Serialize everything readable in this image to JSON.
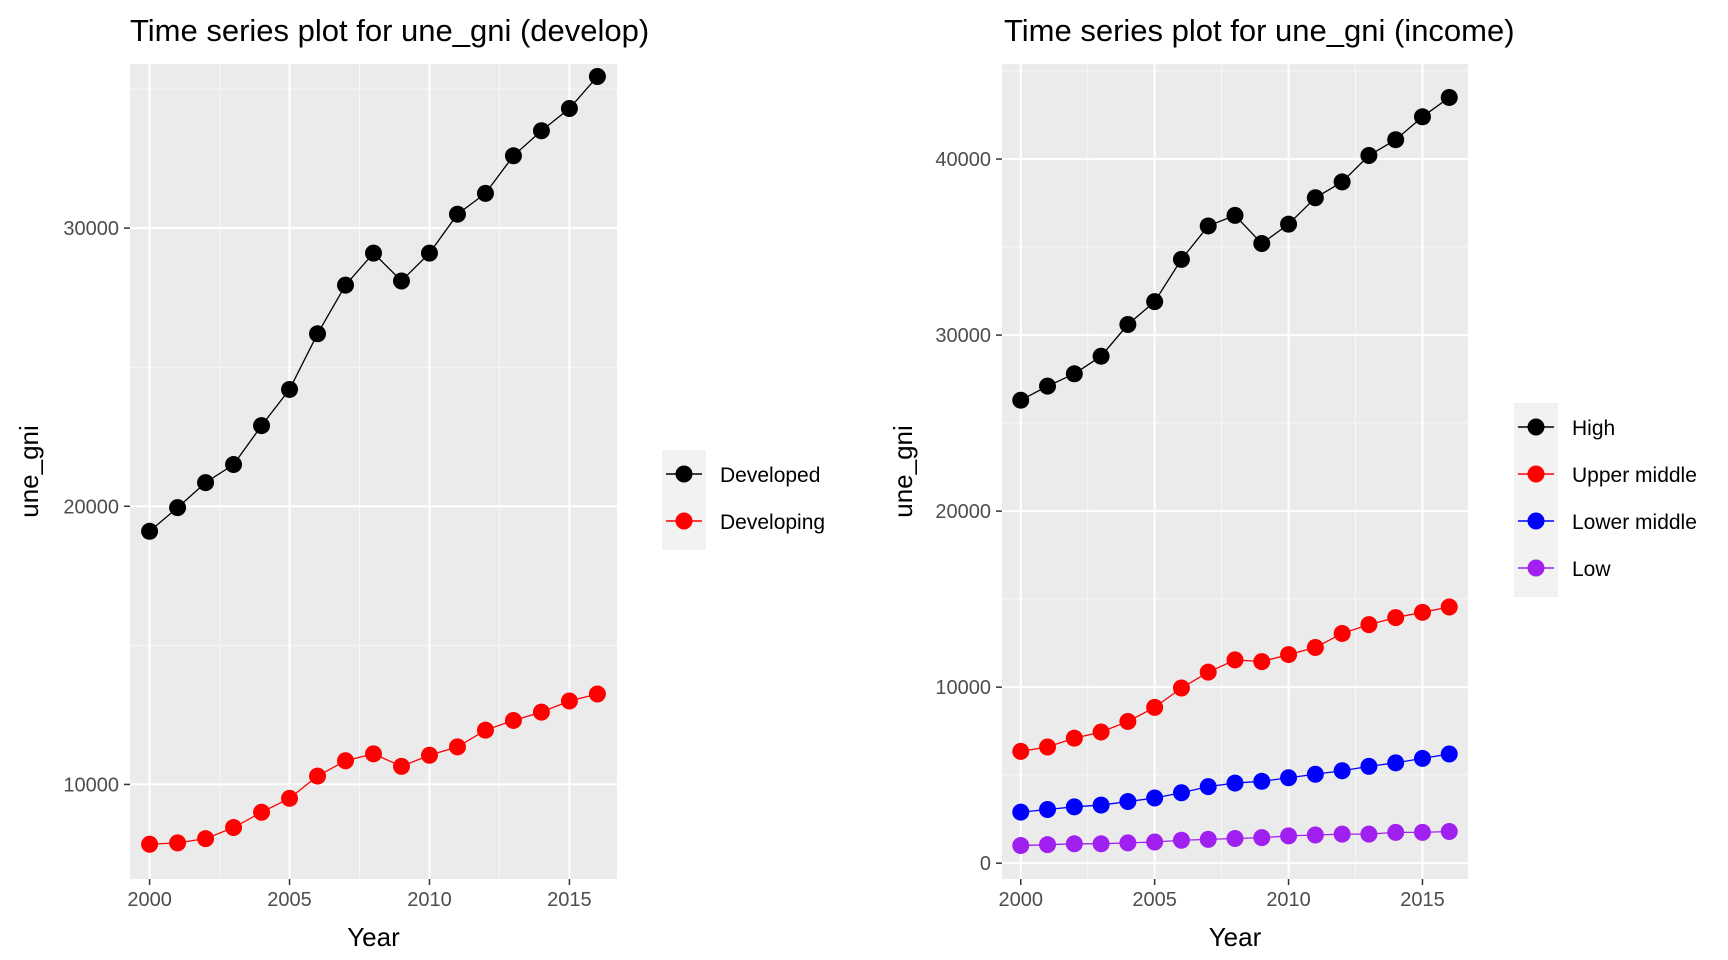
{
  "chart_data": [
    {
      "type": "line",
      "title": "Time series plot for une_gni (develop)",
      "xlabel": "Year",
      "ylabel": "une_gni",
      "xlim": [
        1999.3,
        2016.7
      ],
      "ylim": [
        6600,
        35900
      ],
      "x_ticks": [
        2000,
        2005,
        2010,
        2015
      ],
      "y_ticks": [
        10000,
        20000,
        30000
      ],
      "x_tick_labels": [
        "2000",
        "2005",
        "2010",
        "2015"
      ],
      "y_tick_labels": [
        "10000",
        "20000",
        "30000"
      ],
      "grid": true,
      "legend_position": "right",
      "x": [
        2000,
        2001,
        2002,
        2003,
        2004,
        2005,
        2006,
        2007,
        2008,
        2009,
        2010,
        2011,
        2012,
        2013,
        2014,
        2015,
        2016
      ],
      "series": [
        {
          "name": "Developed",
          "color": "#000000",
          "values": [
            19100,
            19950,
            20850,
            21500,
            22900,
            24200,
            26200,
            27950,
            29100,
            28100,
            29100,
            30500,
            31250,
            32600,
            33500,
            34300,
            35450
          ]
        },
        {
          "name": "Developing",
          "color": "#ff0000",
          "values": [
            7850,
            7900,
            8050,
            8450,
            9000,
            9500,
            10300,
            10850,
            11100,
            10650,
            11050,
            11350,
            11950,
            12300,
            12600,
            13000,
            13250
          ]
        }
      ]
    },
    {
      "type": "line",
      "title": "Time series plot for une_gni (income)",
      "xlabel": "Year",
      "ylabel": "une_gni",
      "xlim": [
        1999.3,
        2016.7
      ],
      "ylim": [
        -900,
        45400
      ],
      "x_ticks": [
        2000,
        2005,
        2010,
        2015
      ],
      "y_ticks": [
        0,
        10000,
        20000,
        30000,
        40000
      ],
      "x_tick_labels": [
        "2000",
        "2005",
        "2010",
        "2015"
      ],
      "y_tick_labels": [
        "0",
        "10000",
        "20000",
        "30000",
        "40000"
      ],
      "grid": true,
      "legend_position": "right",
      "x": [
        2000,
        2001,
        2002,
        2003,
        2004,
        2005,
        2006,
        2007,
        2008,
        2009,
        2010,
        2011,
        2012,
        2013,
        2014,
        2015,
        2016
      ],
      "series": [
        {
          "name": "High",
          "color": "#000000",
          "values": [
            26300,
            27100,
            27800,
            28800,
            30600,
            31900,
            34300,
            36200,
            36800,
            35200,
            36300,
            37800,
            38700,
            40200,
            41100,
            42400,
            43500
          ]
        },
        {
          "name": "Upper middle",
          "color": "#ff0000",
          "values": [
            6350,
            6600,
            7100,
            7450,
            8050,
            8850,
            9950,
            10850,
            11550,
            11450,
            11850,
            12250,
            13050,
            13550,
            13950,
            14250,
            14550
          ]
        },
        {
          "name": "Lower middle",
          "color": "#0000ff",
          "values": [
            2900,
            3050,
            3200,
            3300,
            3500,
            3700,
            4000,
            4350,
            4550,
            4650,
            4850,
            5050,
            5250,
            5500,
            5700,
            5950,
            6200
          ]
        },
        {
          "name": "Low",
          "color": "#a020f0",
          "values": [
            1000,
            1050,
            1100,
            1100,
            1150,
            1200,
            1300,
            1350,
            1400,
            1450,
            1550,
            1600,
            1650,
            1650,
            1750,
            1750,
            1800
          ]
        }
      ]
    }
  ]
}
